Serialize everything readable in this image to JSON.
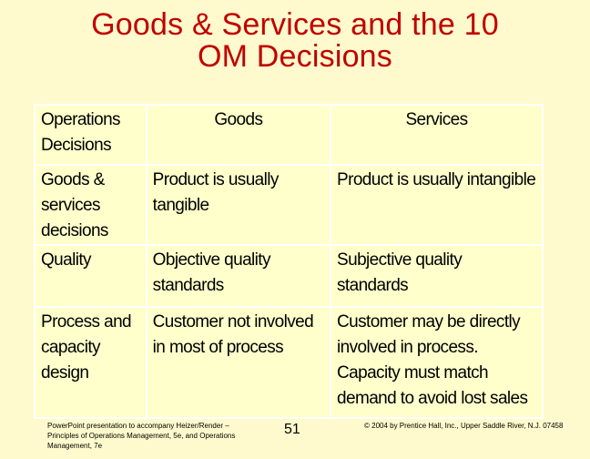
{
  "title": {
    "line1": "Goods & Services and the 10",
    "line2": "OM Decisions"
  },
  "table": {
    "headers": {
      "decisions": "Operations Decisions",
      "goods": "Goods",
      "services": "Services"
    },
    "rows": [
      {
        "decision": "Goods & services decisions",
        "goods": "Product is usually tangible",
        "services": "Product is usually intangible"
      },
      {
        "decision": "Quality",
        "goods": "Objective quality standards",
        "services": "Subjective quality standards"
      },
      {
        "decision": "Process and capacity design",
        "goods": "Customer not involved in most of process",
        "services": "Customer may be directly involved in process. Capacity must match demand to avoid lost sales"
      }
    ]
  },
  "footer": {
    "left": "PowerPoint presentation to accompany Heizer/Render – Principles of Operations Management, 5e, and Operations Management, 7e",
    "page_number": "51",
    "right": "© 2004 by Prentice Hall, Inc., Upper Saddle River, N.J. 07458"
  }
}
